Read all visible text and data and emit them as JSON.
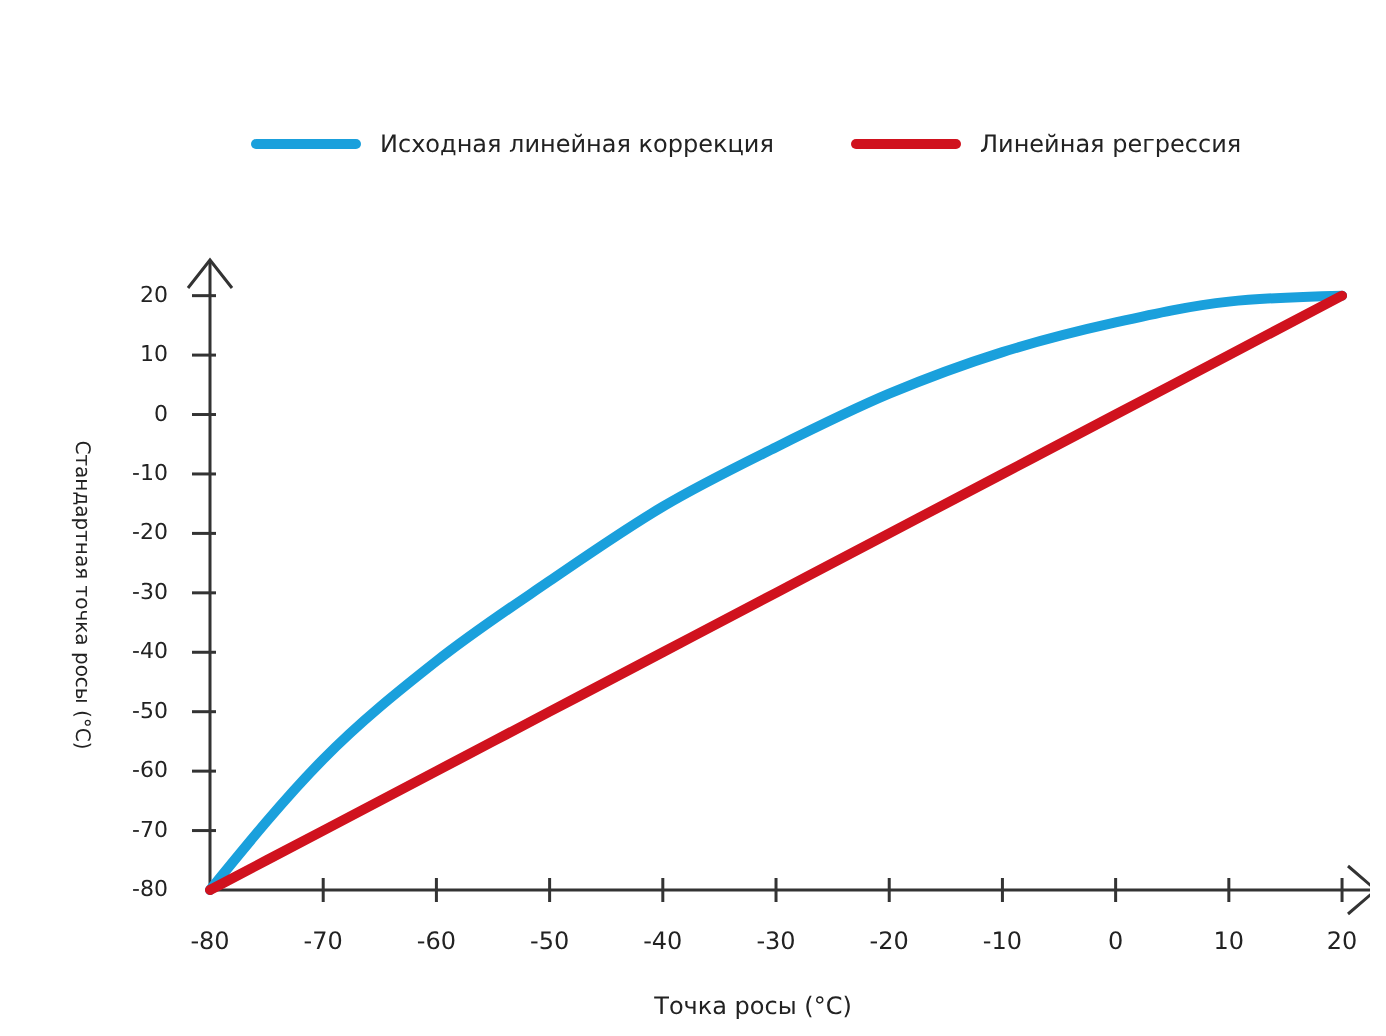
{
  "chart_data": {
    "type": "line",
    "xlabel": "Точка росы (°C)",
    "ylabel": "Стандартная точка росы (°C)",
    "x": [
      -80,
      -70,
      -60,
      -50,
      -40,
      -30,
      -20,
      -10,
      0,
      10,
      20
    ],
    "series": [
      {
        "name": "Исходная линейная коррекция",
        "color": "#1aa0dc",
        "values": [
          -80,
          -58,
          -41.5,
          -28,
          -15.5,
          -5.5,
          3.5,
          10.5,
          15.5,
          19,
          20
        ]
      },
      {
        "name": "Линейная регрессия",
        "color": "#d0121e",
        "values": [
          -80,
          -70,
          -60,
          -50,
          -40,
          -30,
          -20,
          -10,
          0,
          10,
          20
        ]
      }
    ],
    "xlim": [
      -80,
      23
    ],
    "ylim": [
      -80,
      26
    ],
    "xticks": [
      -80,
      -70,
      -60,
      -50,
      -40,
      -30,
      -20,
      -10,
      0,
      10,
      20
    ],
    "yticks": [
      -80,
      -70,
      -60,
      -50,
      -40,
      -30,
      -20,
      -10,
      0,
      10,
      20
    ],
    "grid": false,
    "legend": "top",
    "marker": "none",
    "line_style": "solid"
  }
}
